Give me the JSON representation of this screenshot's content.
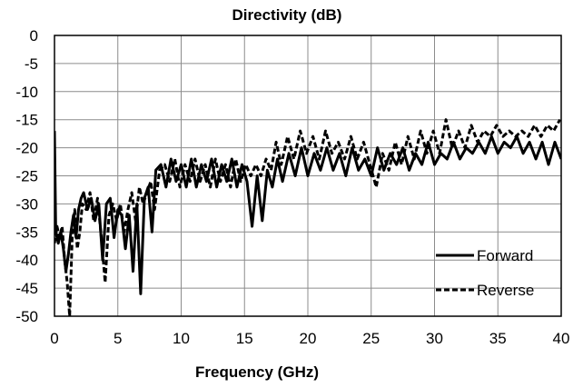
{
  "chart_data": {
    "type": "line",
    "title": "Directivity (dB)",
    "xlabel": "Frequency  (GHz)",
    "ylabel": "",
    "xlim": [
      0,
      40
    ],
    "ylim": [
      -50,
      0
    ],
    "x_ticks": [
      0,
      5,
      10,
      15,
      20,
      25,
      30,
      35,
      40
    ],
    "y_ticks": [
      0,
      -5,
      -10,
      -15,
      -20,
      -25,
      -30,
      -35,
      -40,
      -45,
      -50
    ],
    "grid": true,
    "legend_position": "bottom-right",
    "series": [
      {
        "name": "Forward",
        "style": "solid",
        "color": "#000000",
        "x": [
          0.0,
          0.1,
          0.3,
          0.5,
          0.7,
          0.9,
          1.1,
          1.3,
          1.5,
          1.7,
          1.9,
          2.1,
          2.3,
          2.6,
          2.9,
          3.2,
          3.5,
          3.8,
          4.1,
          4.4,
          4.7,
          5.0,
          5.3,
          5.6,
          5.9,
          6.2,
          6.5,
          6.8,
          7.1,
          7.4,
          7.7,
          8.0,
          8.4,
          8.8,
          9.2,
          9.6,
          10.0,
          10.4,
          10.8,
          11.2,
          11.6,
          12.0,
          12.4,
          12.8,
          13.2,
          13.6,
          14.0,
          14.4,
          14.8,
          15.2,
          15.6,
          16.0,
          16.4,
          16.8,
          17.2,
          17.6,
          18.0,
          18.5,
          19.0,
          19.5,
          20.0,
          20.5,
          21.0,
          21.5,
          22.0,
          22.5,
          23.0,
          23.5,
          24.0,
          24.5,
          25.0,
          25.5,
          26.0,
          26.5,
          27.0,
          27.5,
          28.0,
          28.5,
          29.0,
          29.5,
          30.0,
          30.5,
          31.0,
          31.5,
          32.0,
          32.5,
          33.0,
          33.5,
          34.0,
          34.5,
          35.0,
          35.5,
          36.0,
          36.5,
          37.0,
          37.5,
          38.0,
          38.5,
          39.0,
          39.5,
          40.0
        ],
        "y": [
          -17,
          -35,
          -37,
          -35,
          -38,
          -42,
          -39,
          -35,
          -32,
          -36,
          -31,
          -29,
          -28,
          -31,
          -29,
          -33,
          -30,
          -40,
          -30,
          -29,
          -36,
          -31,
          -32,
          -38,
          -32,
          -42,
          -30,
          -46,
          -29,
          -27,
          -35,
          -24,
          -23,
          -27,
          -22,
          -26,
          -23,
          -27,
          -22,
          -27,
          -23,
          -26,
          -22,
          -27,
          -23,
          -26,
          -22,
          -27,
          -23,
          -26,
          -34,
          -25,
          -33,
          -24,
          -27,
          -22,
          -26,
          -21,
          -25,
          -20,
          -25,
          -21,
          -24,
          -20,
          -24,
          -21,
          -25,
          -20,
          -24,
          -22,
          -25,
          -20,
          -24,
          -21,
          -23,
          -20,
          -24,
          -21,
          -23,
          -19,
          -23,
          -21,
          -22,
          -19,
          -22,
          -20,
          -21,
          -19,
          -21,
          -18,
          -21,
          -19,
          -20,
          -18,
          -21,
          -19,
          -22,
          -19,
          -23,
          -19,
          -22
        ]
      },
      {
        "name": "Reverse",
        "style": "dashed",
        "color": "#000000",
        "x": [
          0.0,
          0.2,
          0.4,
          0.6,
          0.8,
          1.0,
          1.2,
          1.4,
          1.6,
          1.8,
          2.0,
          2.2,
          2.5,
          2.8,
          3.1,
          3.4,
          3.7,
          4.0,
          4.3,
          4.6,
          4.9,
          5.2,
          5.5,
          5.8,
          6.1,
          6.4,
          6.7,
          7.0,
          7.3,
          7.6,
          7.9,
          8.3,
          8.7,
          9.1,
          9.5,
          9.9,
          10.3,
          10.7,
          11.1,
          11.5,
          11.9,
          12.3,
          12.7,
          13.1,
          13.5,
          13.9,
          14.3,
          14.7,
          15.1,
          15.5,
          15.9,
          16.3,
          16.7,
          17.1,
          17.5,
          17.9,
          18.4,
          18.9,
          19.4,
          19.9,
          20.4,
          20.9,
          21.4,
          21.9,
          22.4,
          22.9,
          23.4,
          23.9,
          24.4,
          24.9,
          25.4,
          25.9,
          26.4,
          26.9,
          27.4,
          27.9,
          28.4,
          28.9,
          29.4,
          29.9,
          30.4,
          30.9,
          31.4,
          31.9,
          32.4,
          32.9,
          33.4,
          33.9,
          34.4,
          34.9,
          35.4,
          35.9,
          36.4,
          36.9,
          37.4,
          37.9,
          38.4,
          38.9,
          39.4,
          39.9
        ],
        "y": [
          -37,
          -34,
          -36,
          -34,
          -40,
          -44,
          -50,
          -36,
          -31,
          -38,
          -35,
          -30,
          -31,
          -28,
          -33,
          -29,
          -36,
          -44,
          -32,
          -30,
          -33,
          -30,
          -35,
          -31,
          -28,
          -33,
          -27,
          -30,
          -28,
          -26,
          -31,
          -24,
          -23,
          -26,
          -22,
          -27,
          -23,
          -26,
          -22,
          -26,
          -23,
          -27,
          -22,
          -26,
          -23,
          -27,
          -22,
          -26,
          -23,
          -25,
          -23,
          -25,
          -22,
          -24,
          -19,
          -23,
          -18,
          -22,
          -17,
          -21,
          -18,
          -22,
          -17,
          -21,
          -19,
          -22,
          -18,
          -22,
          -19,
          -23,
          -27,
          -21,
          -24,
          -19,
          -23,
          -18,
          -22,
          -17,
          -21,
          -17,
          -21,
          -15,
          -20,
          -17,
          -20,
          -16,
          -19,
          -17,
          -18,
          -16,
          -18,
          -17,
          -18,
          -17,
          -18,
          -16,
          -18,
          -16,
          -17,
          -15
        ]
      }
    ]
  }
}
